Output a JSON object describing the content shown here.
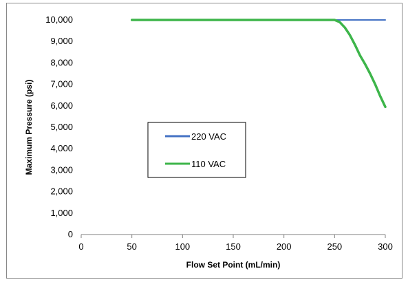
{
  "chart_data": {
    "type": "line",
    "title": "",
    "xlabel": "Flow Set Point (mL/min)",
    "ylabel": "Maximum Pressure (psi)",
    "xlim": [
      0,
      300
    ],
    "ylim": [
      0,
      10000
    ],
    "x_ticks": [
      0,
      50,
      100,
      150,
      200,
      250,
      300
    ],
    "x_tick_labels": [
      "0",
      "50",
      "100",
      "150",
      "200",
      "250",
      "300"
    ],
    "y_ticks": [
      0,
      1000,
      2000,
      3000,
      4000,
      5000,
      6000,
      7000,
      8000,
      9000,
      10000
    ],
    "y_tick_labels": [
      "0",
      "1,000",
      "2,000",
      "3,000",
      "4,000",
      "5,000",
      "6,000",
      "7,000",
      "8,000",
      "9,000",
      "10,000"
    ],
    "grid": false,
    "legend_position": "center-left",
    "series": [
      {
        "name": "220 VAC",
        "color": "#4472C4",
        "x": [
          50,
          100,
          150,
          200,
          250,
          300
        ],
        "y": [
          10000,
          10000,
          10000,
          10000,
          10000,
          10000
        ]
      },
      {
        "name": "110 VAC",
        "color": "#3DB54A",
        "x": [
          50,
          100,
          150,
          200,
          250,
          255,
          260,
          265,
          270,
          275,
          280,
          285,
          290,
          295,
          300
        ],
        "y": [
          10000,
          10000,
          10000,
          10000,
          10000,
          9900,
          9650,
          9300,
          8850,
          8350,
          7950,
          7500,
          7000,
          6450,
          5950
        ]
      }
    ]
  }
}
